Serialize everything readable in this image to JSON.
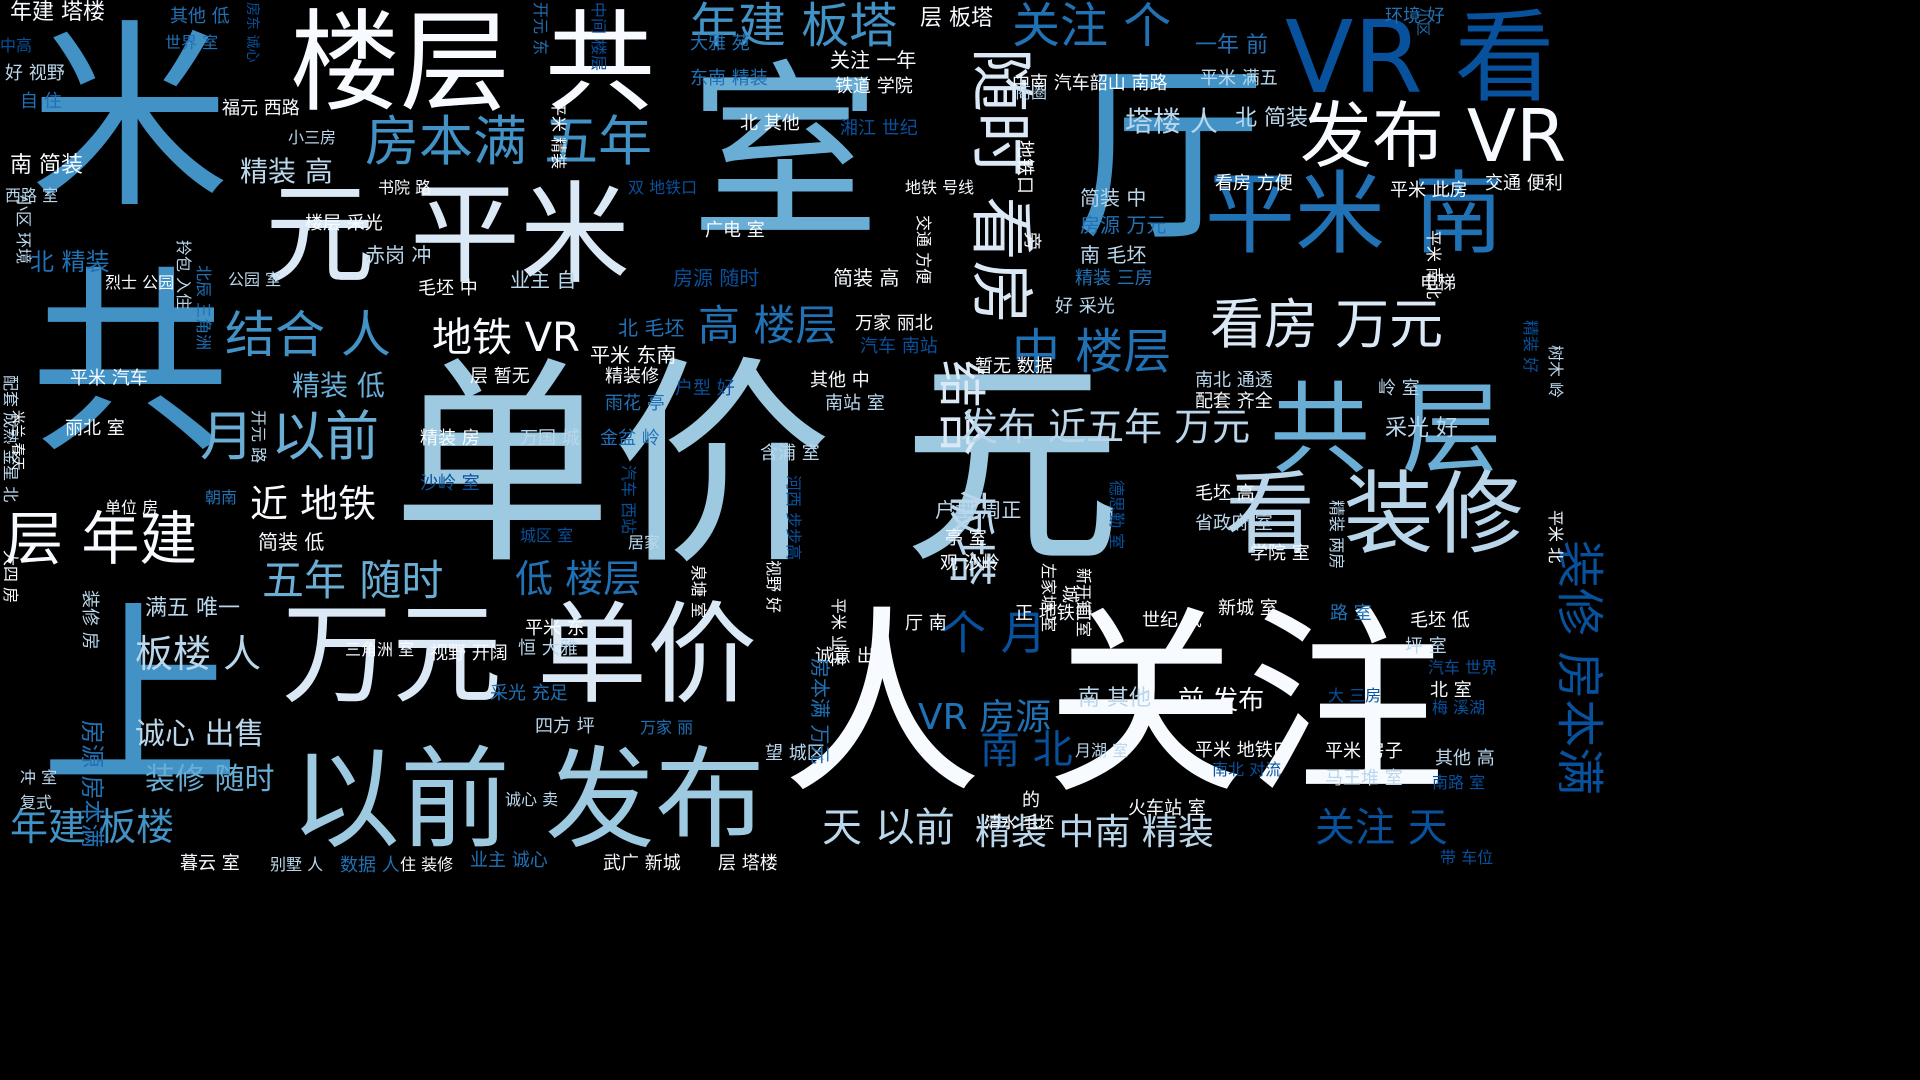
{
  "background": "#000000",
  "palette": {
    "white": "#f7fbff",
    "pale": "#dbe9f6",
    "light": "#bad6eb",
    "mid_light": "#9dc9e1",
    "mid": "#6aaed6",
    "blue": "#4292c6",
    "deep": "#2171b5",
    "dark": "#08519c",
    "navy": "#08306b"
  },
  "words": [
    {
      "text": "单价 元",
      "size": 220,
      "color": "mid_light"
    },
    {
      "text": "人 关注",
      "size": 200,
      "color": "white"
    },
    {
      "text": "室",
      "size": 190,
      "color": "mid"
    },
    {
      "text": "厅",
      "size": 190,
      "color": "blue"
    },
    {
      "text": "米",
      "size": 200,
      "color": "blue"
    },
    {
      "text": "共",
      "size": 200,
      "color": "blue"
    },
    {
      "text": "上",
      "size": 200,
      "color": "blue"
    },
    {
      "text": "楼层 共",
      "size": 110,
      "color": "white"
    },
    {
      "text": "元 平米",
      "size": 110,
      "color": "pale"
    },
    {
      "text": "万元 单价",
      "size": 110,
      "color": "pale"
    },
    {
      "text": "以前 发布",
      "size": 110,
      "color": "mid_light"
    },
    {
      "text": "共 层",
      "size": 100,
      "color": "mid"
    },
    {
      "text": "VR 看",
      "size": 100,
      "color": "dark"
    },
    {
      "text": "平米 南",
      "size": 90,
      "color": "deep"
    },
    {
      "text": "看 装修",
      "size": 90,
      "color": "light"
    },
    {
      "text": "发布 VR",
      "size": 72,
      "color": "white"
    },
    {
      "text": "随时 看房",
      "size": 64,
      "color": "pale"
    },
    {
      "text": "年建 板塔",
      "size": 48,
      "color": "blue"
    },
    {
      "text": "关注 个",
      "size": 48,
      "color": "deep"
    },
    {
      "text": "房本满 五年",
      "size": 54,
      "color": "blue"
    },
    {
      "text": "看房 万元",
      "size": 54,
      "color": "pale"
    },
    {
      "text": "结合 人",
      "size": 50,
      "color": "blue"
    },
    {
      "text": "月 以前",
      "size": 54,
      "color": "mid"
    },
    {
      "text": "层 年建",
      "size": 58,
      "color": "white"
    },
    {
      "text": "地铁 VR",
      "size": 40,
      "color": "white"
    },
    {
      "text": "高 楼层",
      "size": 42,
      "color": "deep"
    },
    {
      "text": "中 楼层",
      "size": 48,
      "color": "deep"
    },
    {
      "text": "结合",
      "size": 48,
      "color": "pale"
    },
    {
      "text": "板塔",
      "size": 48,
      "color": "light"
    },
    {
      "text": "发布 近五年 万元",
      "size": 38,
      "color": "light"
    },
    {
      "text": "近 地铁",
      "size": 38,
      "color": "white"
    },
    {
      "text": "五年 随时",
      "size": 42,
      "color": "mid"
    },
    {
      "text": "低 楼层",
      "size": 38,
      "color": "deep"
    },
    {
      "text": "板楼 人",
      "size": 38,
      "color": "light"
    },
    {
      "text": "个 月",
      "size": 46,
      "color": "dark"
    },
    {
      "text": "VR 房源",
      "size": 36,
      "color": "deep"
    },
    {
      "text": "南 北",
      "size": 40,
      "color": "dark"
    },
    {
      "text": "装修 房本满",
      "size": 48,
      "color": "dark"
    },
    {
      "text": "关注 天",
      "size": 40,
      "color": "dark"
    },
    {
      "text": "年建 板楼",
      "size": 38,
      "color": "blue"
    },
    {
      "text": "天 以前",
      "size": 40,
      "color": "light"
    },
    {
      "text": "精装 中南 精装",
      "size": 36,
      "color": "light"
    },
    {
      "text": "诚心 出售",
      "size": 30,
      "color": "light"
    },
    {
      "text": "装修 随时",
      "size": 30,
      "color": "mid"
    },
    {
      "text": "精装 高",
      "size": 28,
      "color": "light"
    },
    {
      "text": "精装 低",
      "size": 28,
      "color": "mid"
    },
    {
      "text": "塔楼 人",
      "size": 28,
      "color": "light"
    },
    {
      "text": "北 简装",
      "size": 22,
      "color": "light"
    },
    {
      "text": "前 发布",
      "size": 26,
      "color": "white"
    },
    {
      "text": "南 其他",
      "size": 22,
      "color": "light"
    },
    {
      "text": "北 精装",
      "size": 24,
      "color": "deep"
    },
    {
      "text": "南 简装",
      "size": 22,
      "color": "white"
    },
    {
      "text": "年建 塔楼",
      "size": 22,
      "color": "white"
    },
    {
      "text": "其他 低",
      "size": 18,
      "color": "deep"
    },
    {
      "text": "层 板塔",
      "size": 22,
      "color": "white"
    },
    {
      "text": "一年 前",
      "size": 22,
      "color": "deep"
    },
    {
      "text": "环境 好",
      "size": 18,
      "color": "deep"
    },
    {
      "text": "关注 一年",
      "size": 20,
      "color": "white"
    },
    {
      "text": "中南 汽车韶山 南路",
      "size": 18,
      "color": "white"
    },
    {
      "text": "平米 满五",
      "size": 18,
      "color": "light"
    },
    {
      "text": "大雅 苑",
      "size": 18,
      "color": "deep"
    },
    {
      "text": "东南 精装",
      "size": 18,
      "color": "deep"
    },
    {
      "text": "铁道 学院",
      "size": 18,
      "color": "white"
    },
    {
      "text": "福元 西路",
      "size": 18,
      "color": "white"
    },
    {
      "text": "北 其他",
      "size": 18,
      "color": "white"
    },
    {
      "text": "湘江 世纪",
      "size": 18,
      "color": "dark"
    },
    {
      "text": "小三房",
      "size": 16,
      "color": "light"
    },
    {
      "text": "双 地铁口",
      "size": 16,
      "color": "dark"
    },
    {
      "text": "书院 路",
      "size": 16,
      "color": "white"
    },
    {
      "text": "地铁 号线",
      "size": 16,
      "color": "white"
    },
    {
      "text": "看房 方便",
      "size": 18,
      "color": "white"
    },
    {
      "text": "交通 便利",
      "size": 18,
      "color": "white"
    },
    {
      "text": "平米 此房",
      "size": 18,
      "color": "white"
    },
    {
      "text": "简装 中",
      "size": 20,
      "color": "light"
    },
    {
      "text": "房源 万元",
      "size": 20,
      "color": "deep"
    },
    {
      "text": "南 毛坯",
      "size": 20,
      "color": "light"
    },
    {
      "text": "精装 三房",
      "size": 18,
      "color": "deep"
    },
    {
      "text": "楼层 采光",
      "size": 18,
      "color": "white"
    },
    {
      "text": "广电 室",
      "size": 18,
      "color": "white"
    },
    {
      "text": "赤岗 冲",
      "size": 20,
      "color": "light"
    },
    {
      "text": "业主 自",
      "size": 20,
      "color": "light"
    },
    {
      "text": "毛坯 中",
      "size": 18,
      "color": "white"
    },
    {
      "text": "房源 随时",
      "size": 20,
      "color": "dark"
    },
    {
      "text": "简装 高",
      "size": 20,
      "color": "white"
    },
    {
      "text": "好 采光",
      "size": 18,
      "color": "light"
    },
    {
      "text": "电梯",
      "size": 18,
      "color": "white"
    },
    {
      "text": "烈士 公园",
      "size": 16,
      "color": "white"
    },
    {
      "text": "公园 室",
      "size": 16,
      "color": "light"
    },
    {
      "text": "北 毛坯",
      "size": 20,
      "color": "deep"
    },
    {
      "text": "万家 丽北",
      "size": 18,
      "color": "white"
    },
    {
      "text": "汽车 南站",
      "size": 18,
      "color": "dark"
    },
    {
      "text": "平米 东南",
      "size": 20,
      "color": "white"
    },
    {
      "text": "平米 汽车",
      "size": 18,
      "color": "white"
    },
    {
      "text": "层 暂无",
      "size": 18,
      "color": "white"
    },
    {
      "text": "精装修",
      "size": 18,
      "color": "white"
    },
    {
      "text": "户型 好",
      "size": 18,
      "color": "dark"
    },
    {
      "text": "暂无 数据",
      "size": 18,
      "color": "white"
    },
    {
      "text": "其他 中",
      "size": 18,
      "color": "white"
    },
    {
      "text": "南站 室",
      "size": 18,
      "color": "light"
    },
    {
      "text": "南北 通透",
      "size": 18,
      "color": "light"
    },
    {
      "text": "配套 齐全",
      "size": 18,
      "color": "white"
    },
    {
      "text": "岭 室",
      "size": 18,
      "color": "light"
    },
    {
      "text": "雨花 亭",
      "size": 18,
      "color": "deep"
    },
    {
      "text": "采光 好",
      "size": 22,
      "color": "light"
    },
    {
      "text": "丽北 室",
      "size": 18,
      "color": "white"
    },
    {
      "text": "精装 房",
      "size": 18,
      "color": "white"
    },
    {
      "text": "万国 城",
      "size": 18,
      "color": "light"
    },
    {
      "text": "金盆 岭",
      "size": 18,
      "color": "deep"
    },
    {
      "text": "含浦 室",
      "size": 18,
      "color": "light"
    },
    {
      "text": "沙岭 室",
      "size": 18,
      "color": "dark"
    },
    {
      "text": "朝南",
      "size": 16,
      "color": "deep"
    },
    {
      "text": "单位 房",
      "size": 16,
      "color": "white"
    },
    {
      "text": "户型 周正",
      "size": 20,
      "color": "light"
    },
    {
      "text": "简装 低",
      "size": 20,
      "color": "white"
    },
    {
      "text": "亭 室",
      "size": 18,
      "color": "white"
    },
    {
      "text": "观 沙岭",
      "size": 18,
      "color": "white"
    },
    {
      "text": "毛坯 高",
      "size": 18,
      "color": "white"
    },
    {
      "text": "省政府 室",
      "size": 18,
      "color": "light"
    },
    {
      "text": "学院 室",
      "size": 18,
      "color": "white"
    },
    {
      "text": "城区 室",
      "size": 16,
      "color": "dark"
    },
    {
      "text": "居家",
      "size": 16,
      "color": "light"
    },
    {
      "text": "满五 唯一",
      "size": 22,
      "color": "light"
    },
    {
      "text": "新城 室",
      "size": 18,
      "color": "white"
    },
    {
      "text": "路 室",
      "size": 18,
      "color": "deep"
    },
    {
      "text": "正 地铁口",
      "size": 18,
      "color": "white"
    },
    {
      "text": "世纪 城",
      "size": 18,
      "color": "white"
    },
    {
      "text": "毛坯 低",
      "size": 18,
      "color": "white"
    },
    {
      "text": "坪 室",
      "size": 18,
      "color": "light"
    },
    {
      "text": "汽车 世界",
      "size": 16,
      "color": "dark"
    },
    {
      "text": "厅 南",
      "size": 18,
      "color": "white"
    },
    {
      "text": "诚意 出售",
      "size": 18,
      "color": "white"
    },
    {
      "text": "平米 东",
      "size": 18,
      "color": "white"
    },
    {
      "text": "恒 大雅",
      "size": 18,
      "color": "light"
    },
    {
      "text": "三角洲 室",
      "size": 16,
      "color": "white"
    },
    {
      "text": "视野 开阔",
      "size": 18,
      "color": "white"
    },
    {
      "text": "北 室",
      "size": 18,
      "color": "white"
    },
    {
      "text": "大 三房",
      "size": 16,
      "color": "dark"
    },
    {
      "text": "梅 溪湖",
      "size": 16,
      "color": "dark"
    },
    {
      "text": "采光 充足",
      "size": 18,
      "color": "deep"
    },
    {
      "text": "四方 坪",
      "size": 18,
      "color": "light"
    },
    {
      "text": "万家 丽",
      "size": 16,
      "color": "deep"
    },
    {
      "text": "望 城区",
      "size": 18,
      "color": "light"
    },
    {
      "text": "月湖 室",
      "size": 16,
      "color": "light"
    },
    {
      "text": "平米 地铁口",
      "size": 18,
      "color": "white"
    },
    {
      "text": "平米 房子",
      "size": 18,
      "color": "white"
    },
    {
      "text": "其他 高",
      "size": 18,
      "color": "light"
    },
    {
      "text": "南北 对流",
      "size": 16,
      "color": "dark"
    },
    {
      "text": "马王堆 室",
      "size": 18,
      "color": "light"
    },
    {
      "text": "南路 室",
      "size": 16,
      "color": "dark"
    },
    {
      "text": "的",
      "size": 18,
      "color": "white"
    },
    {
      "text": "火车站 室",
      "size": 18,
      "color": "white"
    },
    {
      "text": "清水 毛坯",
      "size": 16,
      "color": "white"
    },
    {
      "text": "诚心 卖",
      "size": 16,
      "color": "light"
    },
    {
      "text": "复式",
      "size": 16,
      "color": "light"
    },
    {
      "text": "冲 室",
      "size": 16,
      "color": "light"
    },
    {
      "text": "暮云 室",
      "size": 18,
      "color": "white"
    },
    {
      "text": "别墅 人",
      "size": 16,
      "color": "light"
    },
    {
      "text": "数据 人",
      "size": 18,
      "color": "deep"
    },
    {
      "text": "住 装修",
      "size": 16,
      "color": "white"
    },
    {
      "text": "业主 诚心",
      "size": 18,
      "color": "deep"
    },
    {
      "text": "武广 新城",
      "size": 18,
      "color": "white"
    },
    {
      "text": "层 塔楼",
      "size": 18,
      "color": "white"
    },
    {
      "text": "带 车位",
      "size": 16,
      "color": "dark"
    },
    {
      "text": "中高",
      "size": 16,
      "color": "dark"
    },
    {
      "text": "好 视野",
      "size": 18,
      "color": "light"
    },
    {
      "text": "自 住",
      "size": 18,
      "color": "deep"
    },
    {
      "text": "世界 室",
      "size": 16,
      "color": "deep"
    },
    {
      "text": "西路 室",
      "size": 16,
      "color": "light"
    },
    {
      "text": "商圈",
      "size": 16,
      "color": "light"
    },
    {
      "text": "小区",
      "size": 14,
      "color": "deep"
    },
    {
      "text": "地铁口",
      "size": 18,
      "color": "white"
    },
    {
      "text": "旁",
      "size": 18,
      "color": "white"
    },
    {
      "text": "交通 方便",
      "size": 16,
      "color": "white"
    },
    {
      "text": "城",
      "size": 18,
      "color": "white"
    },
    {
      "text": "泉塘 室",
      "size": 16,
      "color": "white"
    },
    {
      "text": "视野 好",
      "size": 16,
      "color": "white"
    },
    {
      "text": "左家塘 室",
      "size": 16,
      "color": "white"
    },
    {
      "text": "新开铺 室",
      "size": 16,
      "color": "white"
    },
    {
      "text": "德思勤 室",
      "size": 16,
      "color": "dark"
    },
    {
      "text": "精装 两房",
      "size": 16,
      "color": "light"
    },
    {
      "text": "平米 北",
      "size": 16,
      "color": "white"
    },
    {
      "text": "精装 好",
      "size": 16,
      "color": "dark"
    },
    {
      "text": "树木 岭",
      "size": 16,
      "color": "light"
    },
    {
      "text": "平米 南北",
      "size": 16,
      "color": "white"
    },
    {
      "text": "拎包 入住",
      "size": 16,
      "color": "light"
    },
    {
      "text": "北辰 三角洲",
      "size": 16,
      "color": "deep"
    },
    {
      "text": "配套 成熟 金星 北",
      "size": 16,
      "color": "light"
    },
    {
      "text": "小区 环境",
      "size": 16,
      "color": "light"
    },
    {
      "text": "米兰 春天",
      "size": 14,
      "color": "white"
    },
    {
      "text": "开元 路",
      "size": 16,
      "color": "light"
    },
    {
      "text": "开元 东",
      "size": 16,
      "color": "deep"
    },
    {
      "text": "平米 精装",
      "size": 16,
      "color": "white"
    },
    {
      "text": "中间 楼层",
      "size": 16,
      "color": "dark"
    },
    {
      "text": "平米 业主",
      "size": 16,
      "color": "white"
    },
    {
      "text": "房本满 万元",
      "size": 20,
      "color": "deep"
    },
    {
      "text": "装修 房",
      "size": 18,
      "color": "light"
    },
    {
      "text": "房源 房本满",
      "size": 24,
      "color": "deep"
    },
    {
      "text": "大四 房",
      "size": 16,
      "color": "white"
    },
    {
      "text": "汽车 西站",
      "size": 16,
      "color": "dark"
    },
    {
      "text": "河西 步步高",
      "size": 16,
      "color": "dark"
    },
    {
      "text": "房东 诚心",
      "size": 14,
      "color": "dark"
    }
  ]
}
